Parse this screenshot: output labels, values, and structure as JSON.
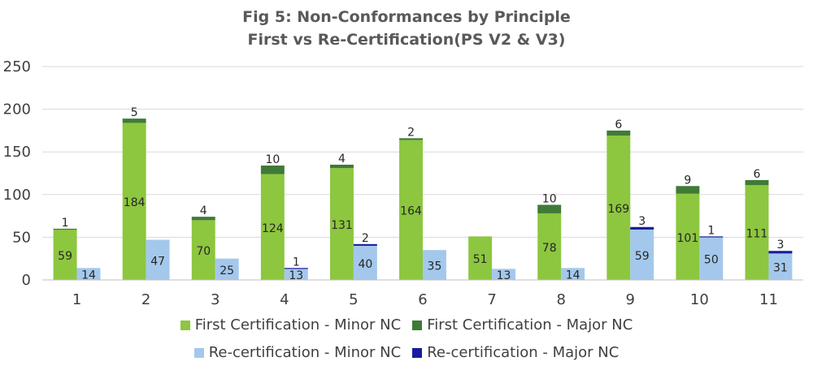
{
  "chart_data": {
    "type": "bar",
    "stacked": true,
    "title": "Fig 5: Non-Conformances by Principle",
    "subtitle": "First vs Re-Certification(PS V2 & V3)",
    "categories": [
      "1",
      "2",
      "3",
      "4",
      "5",
      "6",
      "7",
      "8",
      "9",
      "10",
      "11"
    ],
    "ylim": [
      0,
      250
    ],
    "yticks": [
      "0",
      "50",
      "100",
      "150",
      "200",
      "250"
    ],
    "grid": true,
    "legend_position": "bottom",
    "groups": [
      {
        "stack": "first",
        "series": [
          {
            "name": "First Certification - Minor NC",
            "color": "#8dc63f",
            "values": [
              59,
              184,
              70,
              124,
              131,
              164,
              51,
              78,
              169,
              101,
              111
            ],
            "labels": [
              "59",
              "184",
              "70",
              "124",
              "131",
              "164",
              "51",
              "78",
              "169",
              "101",
              "111"
            ]
          },
          {
            "name": "First Certification - Major NC",
            "color": "#3f7a37",
            "values": [
              1,
              5,
              4,
              10,
              4,
              2,
              0,
              10,
              6,
              9,
              6
            ],
            "labels": [
              "1",
              "5",
              "4",
              "10",
              "4",
              "2",
              "",
              "10",
              "6",
              "9",
              "6"
            ]
          }
        ]
      },
      {
        "stack": "re",
        "series": [
          {
            "name": "Re-certification - Minor NC",
            "color": "#a4c8ec",
            "values": [
              14,
              47,
              25,
              13,
              40,
              35,
              13,
              14,
              59,
              50,
              31
            ],
            "labels": [
              "14",
              "47",
              "25",
              "13",
              "40",
              "35",
              "13",
              "14",
              "59",
              "50",
              "31"
            ]
          },
          {
            "name": "Re-certification - Major NC",
            "color": "#1a1a9c",
            "values": [
              0,
              0,
              0,
              1,
              2,
              0,
              0,
              0,
              3,
              1,
              3
            ],
            "labels": [
              "",
              "",
              "",
              "1",
              "2",
              "",
              "",
              "",
              "3",
              "1",
              "3"
            ]
          }
        ]
      }
    ]
  }
}
